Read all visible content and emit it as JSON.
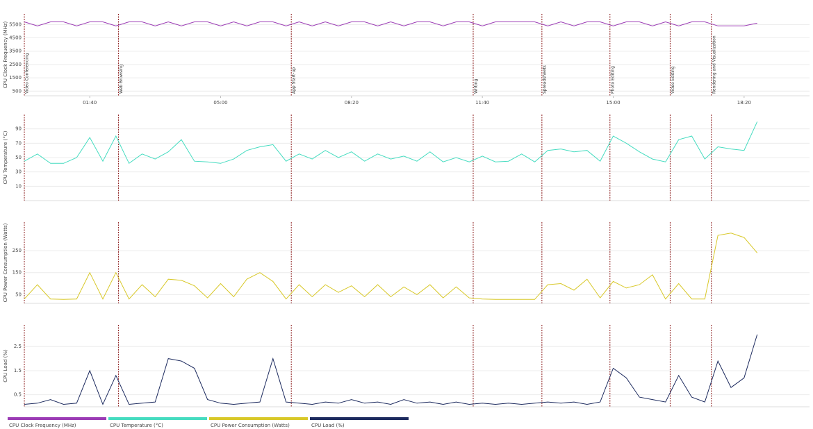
{
  "chart_data": [
    {
      "type": "line",
      "ylabel": "CPU Clock Frequency (MHz)",
      "x": [
        0,
        20,
        40,
        60,
        80,
        100,
        120,
        140,
        160,
        180,
        200,
        220,
        240,
        260,
        280,
        300,
        320,
        340,
        360,
        380,
        400,
        420,
        440,
        460,
        480,
        500,
        520,
        540,
        560,
        580,
        600,
        620,
        640,
        660,
        680,
        700,
        720,
        740,
        760,
        780,
        800,
        820,
        840,
        860,
        880,
        900,
        920,
        940,
        960,
        980,
        1000,
        1020,
        1040,
        1060,
        1080,
        1100,
        1120
      ],
      "xlim": [
        0,
        1200
      ],
      "xticks": [
        {
          "value": 100,
          "label": "01:40"
        },
        {
          "value": 300,
          "label": "05:00"
        },
        {
          "value": 500,
          "label": "08:20"
        },
        {
          "value": 700,
          "label": "11:40"
        },
        {
          "value": 900,
          "label": "15:00"
        },
        {
          "value": 1100,
          "label": "18:20"
        }
      ],
      "ylim": [
        150,
        6300
      ],
      "yticks": [
        500,
        1500,
        2500,
        3500,
        4500,
        5500
      ],
      "grid": true,
      "annotations": [
        {
          "x": 0,
          "label": "Video Conferencing"
        },
        {
          "x": 144,
          "label": "Web Browsing"
        },
        {
          "x": 408,
          "label": "App Start-up"
        },
        {
          "x": 686,
          "label": "Writing"
        },
        {
          "x": 791,
          "label": "Spreadsheets"
        },
        {
          "x": 895,
          "label": "Photo Editing"
        },
        {
          "x": 987,
          "label": "Video Editing"
        },
        {
          "x": 1050,
          "label": "Rendering and Visualization"
        }
      ],
      "series": [
        {
          "name": "CPU Clock Frequency (MHz)",
          "color": "#9b3bb5",
          "values": [
            5700,
            5400,
            5700,
            5700,
            5400,
            5700,
            5700,
            5400,
            5700,
            5700,
            5400,
            5700,
            5400,
            5700,
            5700,
            5400,
            5700,
            5400,
            5700,
            5700,
            5400,
            5700,
            5400,
            5700,
            5400,
            5700,
            5700,
            5400,
            5700,
            5400,
            5700,
            5700,
            5400,
            5700,
            5700,
            5400,
            5700,
            5700,
            5700,
            5700,
            5400,
            5700,
            5400,
            5700,
            5700,
            5400,
            5700,
            5700,
            5400,
            5700,
            5400,
            5700,
            5700,
            5400,
            5400,
            5400,
            5600
          ]
        }
      ]
    },
    {
      "type": "line",
      "ylabel": "CPU Temperature (°C)",
      "x": [
        0,
        20,
        40,
        60,
        80,
        100,
        120,
        140,
        160,
        180,
        200,
        220,
        240,
        260,
        280,
        300,
        320,
        340,
        360,
        380,
        400,
        420,
        440,
        460,
        480,
        500,
        520,
        540,
        560,
        580,
        600,
        620,
        640,
        660,
        680,
        700,
        720,
        740,
        760,
        780,
        800,
        820,
        840,
        860,
        880,
        900,
        920,
        940,
        960,
        980,
        1000,
        1020,
        1040,
        1060,
        1080,
        1100,
        1120
      ],
      "xlim": [
        0,
        1200
      ],
      "ylim": [
        -10,
        110
      ],
      "yticks": [
        10,
        30,
        50,
        70,
        90
      ],
      "grid": true,
      "series": [
        {
          "name": "CPU Temperature (°C)",
          "color": "#45dcc0",
          "values": [
            45,
            55,
            42,
            42,
            50,
            78,
            45,
            80,
            42,
            55,
            48,
            58,
            75,
            45,
            44,
            42,
            48,
            60,
            65,
            68,
            45,
            55,
            48,
            60,
            50,
            58,
            45,
            55,
            48,
            52,
            45,
            58,
            44,
            50,
            44,
            52,
            44,
            45,
            55,
            44,
            60,
            62,
            58,
            60,
            45,
            80,
            70,
            58,
            48,
            44,
            75,
            80,
            48,
            65,
            62,
            60,
            100
          ]
        }
      ]
    },
    {
      "type": "line",
      "ylabel": "CPU Power Consumption (Watts)",
      "x": [
        0,
        20,
        40,
        60,
        80,
        100,
        120,
        140,
        160,
        180,
        200,
        220,
        240,
        260,
        280,
        300,
        320,
        340,
        360,
        380,
        400,
        420,
        440,
        460,
        480,
        500,
        520,
        540,
        560,
        580,
        600,
        620,
        640,
        660,
        680,
        700,
        720,
        740,
        760,
        780,
        800,
        820,
        840,
        860,
        880,
        900,
        920,
        940,
        960,
        980,
        1000,
        1020,
        1040,
        1060,
        1080,
        1100,
        1120
      ],
      "xlim": [
        0,
        1200
      ],
      "ylim": [
        10,
        380
      ],
      "yticks": [
        50,
        150,
        250
      ],
      "grid": true,
      "series": [
        {
          "name": "CPU Power Consumption (Watts)",
          "color": "#d8c828",
          "values": [
            30,
            95,
            30,
            28,
            30,
            150,
            30,
            150,
            30,
            95,
            40,
            120,
            115,
            90,
            35,
            100,
            40,
            120,
            150,
            110,
            30,
            95,
            40,
            95,
            60,
            90,
            40,
            95,
            40,
            85,
            50,
            95,
            35,
            85,
            35,
            30,
            28,
            28,
            28,
            28,
            95,
            100,
            70,
            120,
            35,
            110,
            80,
            95,
            140,
            30,
            100,
            30,
            30,
            320,
            330,
            310,
            240
          ]
        }
      ]
    },
    {
      "type": "line",
      "ylabel": "CPU Load (%)",
      "x": [
        0,
        20,
        40,
        60,
        80,
        100,
        120,
        140,
        160,
        180,
        200,
        220,
        240,
        260,
        280,
        300,
        320,
        340,
        360,
        380,
        400,
        420,
        440,
        460,
        480,
        500,
        520,
        540,
        560,
        580,
        600,
        620,
        640,
        660,
        680,
        700,
        720,
        740,
        760,
        780,
        800,
        820,
        840,
        860,
        880,
        900,
        920,
        940,
        960,
        980,
        1000,
        1020,
        1040,
        1060,
        1080,
        1100,
        1120
      ],
      "xlim": [
        0,
        1200
      ],
      "ylim": [
        0,
        3.4
      ],
      "yticks": [
        0.5,
        1.5,
        2.5
      ],
      "grid": true,
      "series": [
        {
          "name": "CPU Load (%)",
          "color": "#1c2a5e",
          "values": [
            0.1,
            0.15,
            0.3,
            0.1,
            0.15,
            1.5,
            0.1,
            1.3,
            0.1,
            0.15,
            0.2,
            2.0,
            1.9,
            1.6,
            0.3,
            0.15,
            0.1,
            0.15,
            0.2,
            2.0,
            0.2,
            0.15,
            0.1,
            0.2,
            0.15,
            0.3,
            0.15,
            0.2,
            0.1,
            0.3,
            0.15,
            0.2,
            0.1,
            0.2,
            0.1,
            0.15,
            0.1,
            0.15,
            0.1,
            0.15,
            0.2,
            0.15,
            0.2,
            0.1,
            0.2,
            1.6,
            1.2,
            0.4,
            0.3,
            0.2,
            1.3,
            0.4,
            0.2,
            1.9,
            0.8,
            1.2,
            3.0
          ]
        }
      ]
    }
  ]
}
